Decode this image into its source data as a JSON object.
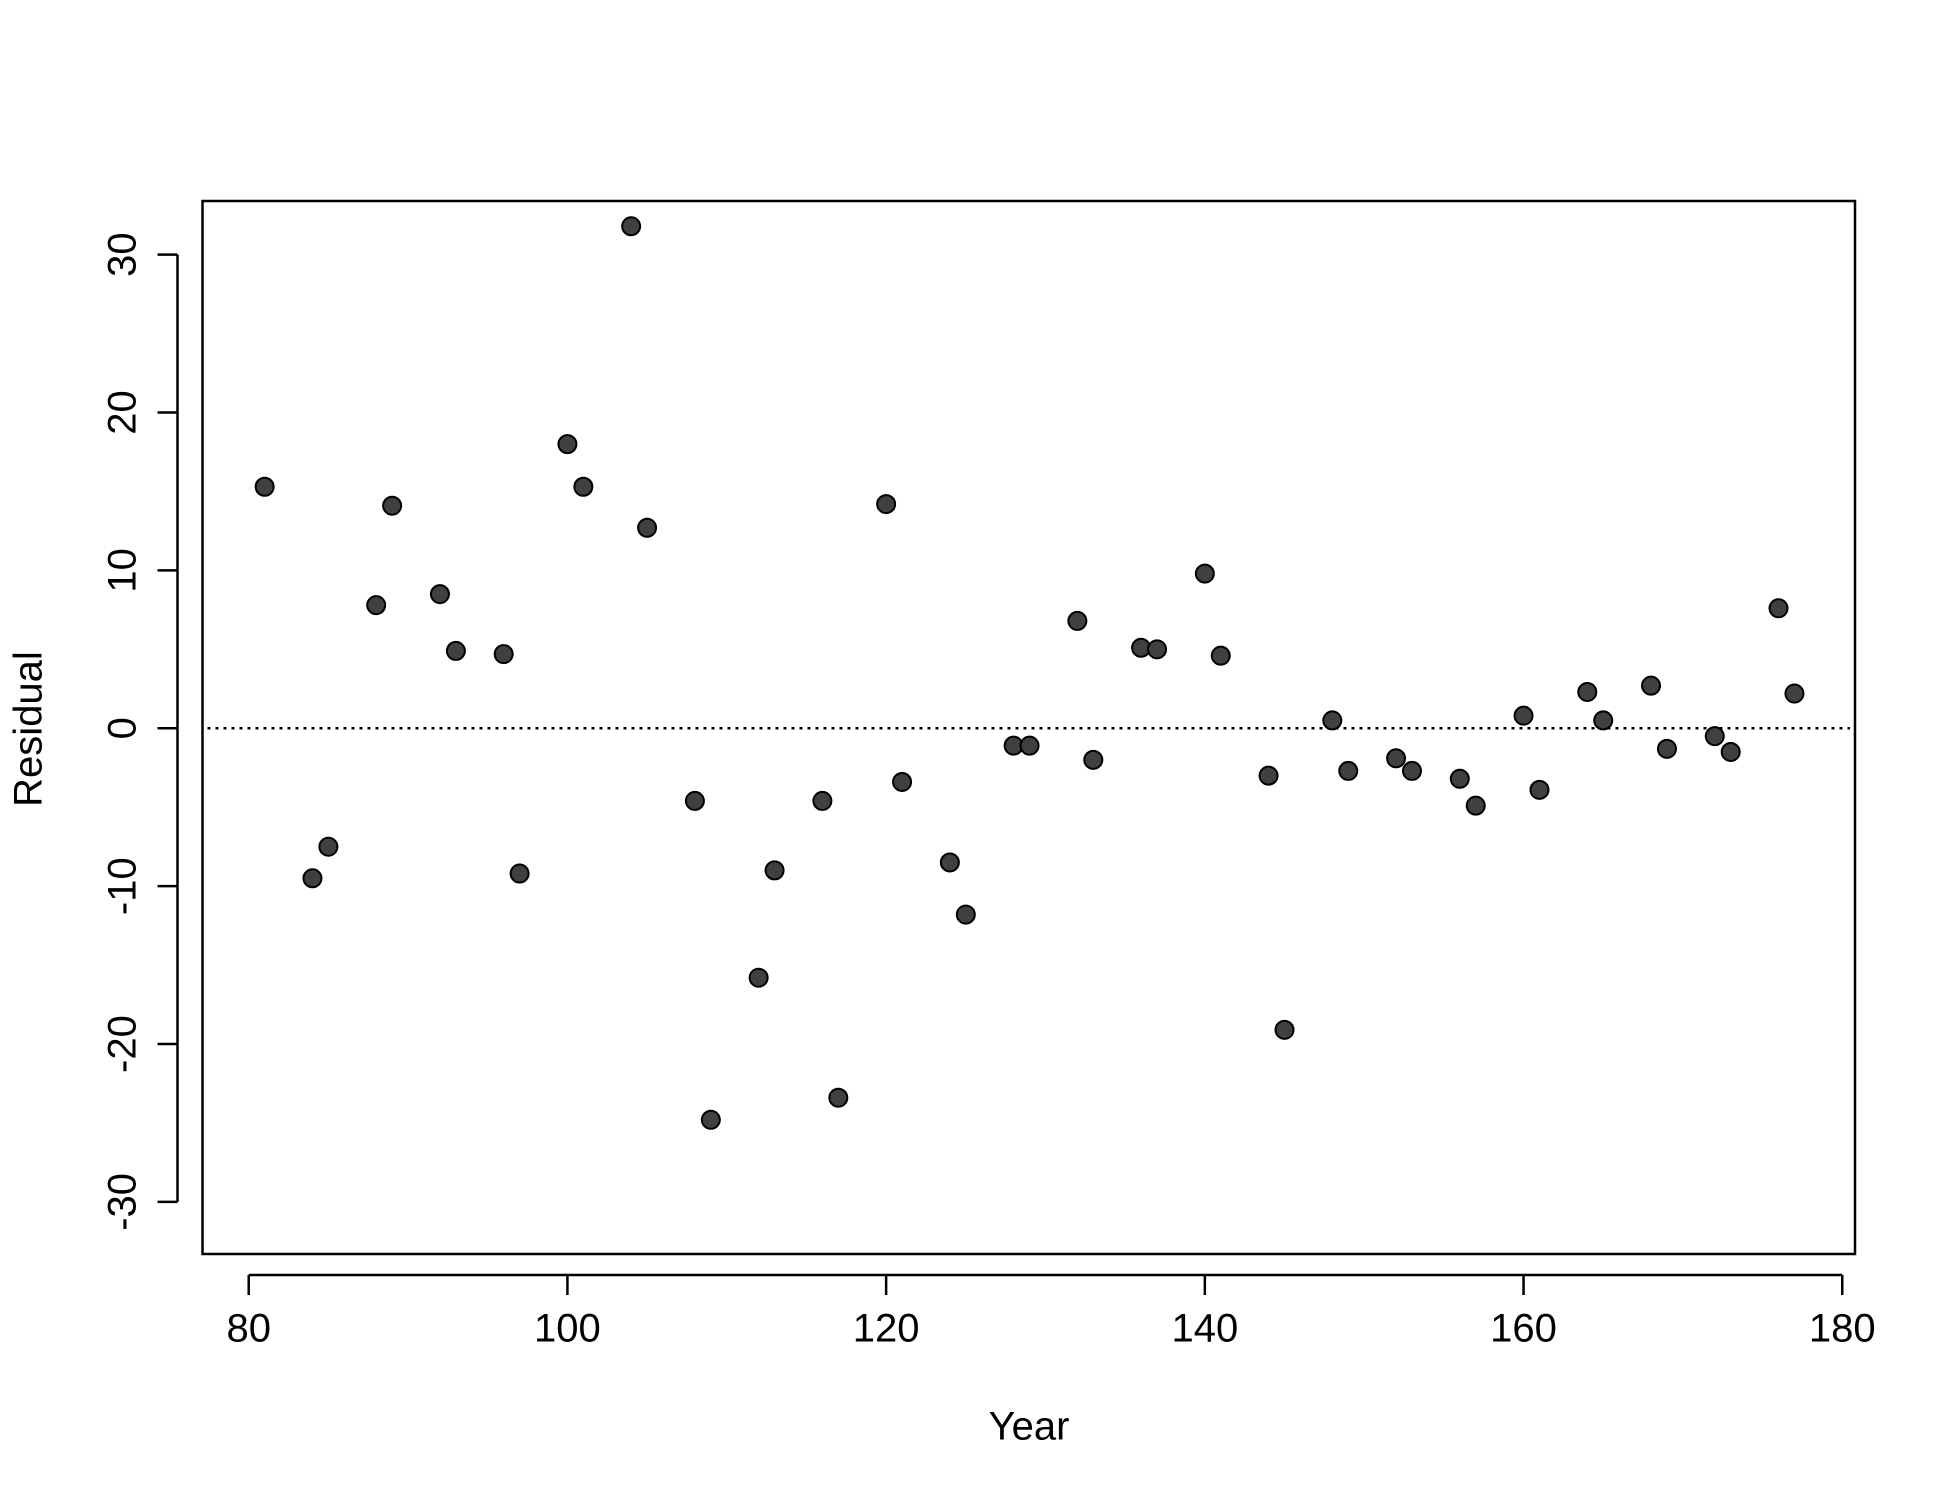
{
  "chart_data": {
    "type": "scatter",
    "x_label": "Year",
    "y_label": "Residual",
    "x": [
      81,
      84,
      85,
      88,
      89,
      92,
      93,
      96,
      97,
      100,
      101,
      104,
      105,
      108,
      109,
      112,
      113,
      116,
      117,
      120,
      121,
      124,
      125,
      128,
      129,
      132,
      133,
      136,
      137,
      140,
      141,
      144,
      145,
      148,
      149,
      152,
      153,
      156,
      157,
      160,
      161,
      164,
      165,
      168,
      169,
      172,
      173,
      176,
      177
    ],
    "values": [
      15.3,
      -9.5,
      -7.5,
      7.8,
      14.1,
      8.5,
      4.9,
      4.7,
      -9.2,
      18.0,
      15.3,
      31.8,
      12.7,
      -4.6,
      -24.8,
      -15.8,
      -9.0,
      -4.6,
      -23.4,
      14.2,
      -3.4,
      -8.5,
      -11.8,
      -1.1,
      -1.1,
      6.8,
      -2.0,
      5.1,
      5.0,
      9.8,
      4.6,
      -3.0,
      -19.1,
      0.5,
      -2.7,
      -1.9,
      -2.7,
      -3.2,
      -4.9,
      0.8,
      -3.9,
      2.3,
      0.5,
      2.7,
      -1.3,
      -0.5,
      -1.5,
      7.6,
      2.2
    ],
    "color": "#404040",
    "xlim": [
      77.1,
      180.8
    ],
    "ylim": [
      -33.3,
      33.4
    ],
    "xticks": [
      80,
      100,
      120,
      140,
      160,
      180
    ],
    "yticks": [
      -30,
      -20,
      -10,
      0,
      10,
      20,
      30
    ],
    "hline": 0
  }
}
